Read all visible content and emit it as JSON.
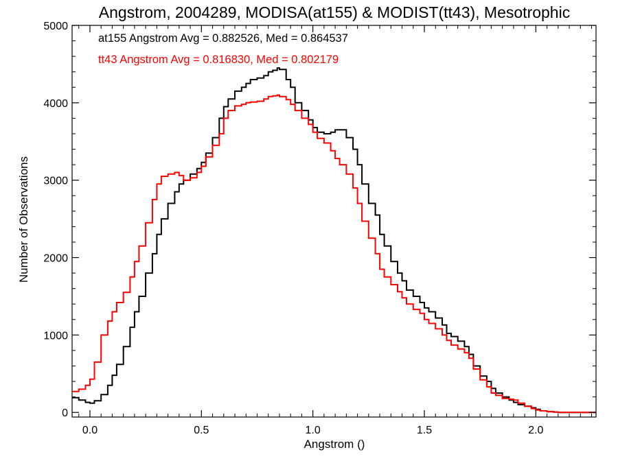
{
  "chart_data": {
    "type": "line",
    "title": "Angstrom, 2004289, MODISA(at155) & MODIST(tt43), Mesotrophic",
    "xlabel": "Angstrom ()",
    "ylabel": "Number of Observations",
    "xlim": [
      -0.08,
      2.27
    ],
    "ylim": [
      -60,
      5000
    ],
    "x_ticks": [
      0.0,
      0.5,
      1.0,
      1.5,
      2.0
    ],
    "x_tick_labels": [
      "0.0",
      "0.5",
      "1.0",
      "1.5",
      "2.0"
    ],
    "y_ticks": [
      0,
      1000,
      2000,
      3000,
      4000,
      5000
    ],
    "y_tick_labels": [
      "0",
      "1000",
      "2000",
      "3000",
      "4000",
      "5000"
    ],
    "grid": false,
    "annotations": [
      {
        "text": "at155 Angstrom Avg = 0.882526, Med = 0.864537",
        "color": "#000000"
      },
      {
        "text": "tt43 Angstrom Avg = 0.816830, Med = 0.802179",
        "color": "#ff0000"
      }
    ],
    "series": [
      {
        "color": "#000000",
        "x": [
          -0.08,
          -0.05,
          -0.02,
          0.0,
          0.02,
          0.05,
          0.08,
          0.1,
          0.12,
          0.15,
          0.18,
          0.2,
          0.22,
          0.25,
          0.28,
          0.3,
          0.32,
          0.35,
          0.38,
          0.4,
          0.42,
          0.45,
          0.48,
          0.5,
          0.52,
          0.55,
          0.58,
          0.6,
          0.62,
          0.65,
          0.68,
          0.7,
          0.72,
          0.75,
          0.78,
          0.8,
          0.82,
          0.84,
          0.85,
          0.88,
          0.9,
          0.92,
          0.95,
          0.98,
          1.0,
          1.02,
          1.05,
          1.08,
          1.1,
          1.12,
          1.15,
          1.18,
          1.2,
          1.22,
          1.25,
          1.28,
          1.3,
          1.32,
          1.35,
          1.38,
          1.4,
          1.42,
          1.45,
          1.48,
          1.5,
          1.52,
          1.55,
          1.58,
          1.6,
          1.62,
          1.65,
          1.68,
          1.7,
          1.72,
          1.75,
          1.78,
          1.8,
          1.82,
          1.85,
          1.88,
          1.9,
          1.92,
          1.95,
          1.98,
          2.0,
          2.02,
          2.05,
          2.08,
          2.1,
          2.12,
          2.15,
          2.18,
          2.2,
          2.22,
          2.25,
          2.27
        ],
        "y": [
          190,
          160,
          130,
          120,
          150,
          230,
          350,
          480,
          620,
          850,
          1100,
          1300,
          1500,
          1800,
          2050,
          2300,
          2500,
          2700,
          2850,
          2950,
          3000,
          3080,
          3150,
          3230,
          3350,
          3550,
          3800,
          3950,
          4050,
          4150,
          4200,
          4250,
          4300,
          4320,
          4350,
          4400,
          4420,
          4450,
          4430,
          4300,
          4200,
          4000,
          3900,
          3780,
          3680,
          3620,
          3600,
          3620,
          3650,
          3650,
          3550,
          3400,
          3200,
          2950,
          2700,
          2550,
          2300,
          2150,
          1950,
          1800,
          1700,
          1580,
          1500,
          1420,
          1350,
          1300,
          1220,
          1130,
          1020,
          980,
          920,
          850,
          750,
          600,
          470,
          400,
          310,
          250,
          200,
          160,
          130,
          100,
          80,
          60,
          40,
          20,
          10,
          5,
          0,
          0,
          0,
          0,
          0,
          0,
          0,
          0
        ]
      },
      {
        "color": "#ff0000",
        "x": [
          -0.08,
          -0.05,
          -0.02,
          0.0,
          0.02,
          0.05,
          0.08,
          0.1,
          0.12,
          0.15,
          0.18,
          0.2,
          0.22,
          0.25,
          0.28,
          0.3,
          0.32,
          0.35,
          0.38,
          0.4,
          0.42,
          0.45,
          0.48,
          0.5,
          0.52,
          0.55,
          0.58,
          0.6,
          0.62,
          0.65,
          0.68,
          0.7,
          0.72,
          0.75,
          0.78,
          0.8,
          0.82,
          0.84,
          0.85,
          0.88,
          0.9,
          0.92,
          0.95,
          0.98,
          1.0,
          1.02,
          1.05,
          1.08,
          1.1,
          1.12,
          1.15,
          1.18,
          1.2,
          1.22,
          1.25,
          1.28,
          1.3,
          1.32,
          1.35,
          1.38,
          1.4,
          1.42,
          1.45,
          1.48,
          1.5,
          1.52,
          1.55,
          1.58,
          1.6,
          1.62,
          1.65,
          1.68,
          1.7,
          1.72,
          1.75,
          1.78,
          1.8,
          1.82,
          1.85,
          1.88,
          1.9,
          1.92,
          1.95,
          1.98,
          2.0,
          2.02,
          2.05,
          2.08,
          2.1,
          2.12,
          2.15,
          2.18,
          2.2,
          2.22,
          2.25,
          2.27
        ],
        "y": [
          270,
          300,
          350,
          430,
          650,
          1000,
          1180,
          1300,
          1420,
          1550,
          1750,
          1950,
          2150,
          2450,
          2750,
          2950,
          3050,
          3080,
          3100,
          3060,
          3000,
          3030,
          3100,
          3180,
          3300,
          3450,
          3600,
          3800,
          3900,
          3960,
          3980,
          4000,
          4010,
          4020,
          4050,
          4080,
          4090,
          4100,
          4080,
          4040,
          3980,
          3900,
          3800,
          3720,
          3620,
          3540,
          3480,
          3380,
          3280,
          3200,
          3080,
          2900,
          2700,
          2470,
          2250,
          2050,
          1850,
          1750,
          1650,
          1560,
          1480,
          1400,
          1330,
          1280,
          1200,
          1150,
          1080,
          1000,
          930,
          870,
          820,
          770,
          700,
          560,
          420,
          330,
          250,
          220,
          180,
          170,
          160,
          120,
          80,
          50,
          30,
          20,
          10,
          5,
          0,
          0,
          0,
          0,
          0,
          0,
          0,
          0
        ]
      }
    ]
  }
}
